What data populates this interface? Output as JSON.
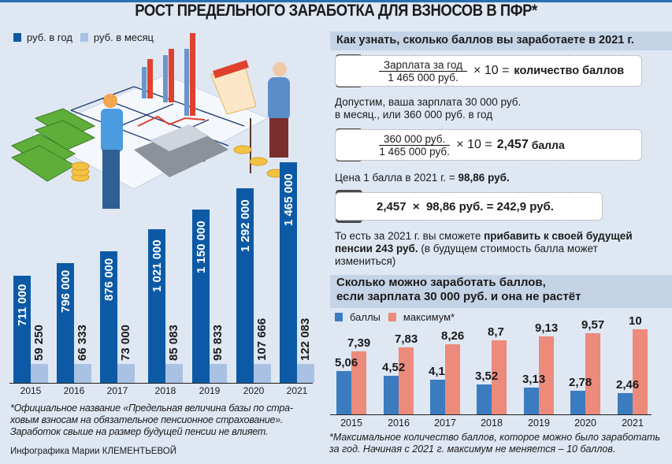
{
  "title": "РОСТ ПРЕДЕЛЬНОГО ЗАРАБОТКА ДЛЯ ВЗНОСОВ В ПФР*",
  "left_chart": {
    "legend": [
      "руб. в год",
      "руб. в месяц"
    ],
    "colors": {
      "year": "#0c5aa6",
      "month": "#a9c1e3"
    },
    "footnote_lines": [
      "*Официальное название «Предельная величина базы по стра-",
      "ховым взносам на обязательное пенсионное страхование».",
      "Заработок свыше на размер будущей пенсии не влияет."
    ],
    "credit": "Инфографика Марии КЛЕМЕНТЬЕВОЙ"
  },
  "right_panel": {
    "header": "Как узнать, сколько баллов вы заработаете в 2021 г.",
    "formula1": {
      "numerator": "Зарплата за год",
      "denominator": "1 465 000 руб.",
      "op": "× 10 =",
      "result": "количество баллов"
    },
    "text1": [
      "Допустим, ваша зарплата 30 000 руб.",
      "в месяц., или 360 000 руб. в год"
    ],
    "formula2": {
      "numerator": "360 000 руб.",
      "denominator": "1 465 000 руб.",
      "op": "× 10 =",
      "result": "2,457",
      "unit": "балла"
    },
    "price_text": "Цена 1 балла в 2021 г. = ",
    "price_value": "98,86 руб.",
    "formula3": "2,457  ×  98,86 руб. = 242,9 руб.",
    "text2_a": "То есть за 2021 г. вы сможете ",
    "text2_b": "прибавить к своей будущей",
    "text2_c": "пенсии 243 руб.",
    "text2_d": " (в будущем стоимость балла может",
    "text2_e": "измениться)",
    "header2": [
      "Сколько можно заработать баллов,",
      "если зарплата 30 000 руб. и она не растёт"
    ],
    "legend": [
      "баллы",
      "максимум*"
    ],
    "colors": {
      "points": "#3b7cc0",
      "max": "#ec8a7b"
    },
    "footnote_lines": [
      "*Максимальное количество баллов, которое можно было заработать",
      "за год. Начиная с 2021 г. максимум не меняется –  10 баллов."
    ]
  },
  "chart_data": [
    {
      "type": "bar",
      "title": "РОСТ ПРЕДЕЛЬНОГО ЗАРАБОТКА ДЛЯ ВЗНОСОВ В ПФР*",
      "categories": [
        "2015",
        "2016",
        "2017",
        "2018",
        "2019",
        "2020",
        "2021"
      ],
      "series": [
        {
          "name": "руб. в год",
          "values": [
            711000,
            796000,
            876000,
            1021000,
            1150000,
            1292000,
            1465000
          ],
          "labels": [
            "711 000",
            "796 000",
            "876 000",
            "1 021 000",
            "1 150 000",
            "1 292 000",
            "1 465 000"
          ]
        },
        {
          "name": "руб. в месяц",
          "values": [
            59250,
            66333,
            73000,
            85083,
            95833,
            107666,
            122083
          ],
          "labels": [
            "59 250",
            "66 333",
            "73 000",
            "85 083",
            "95 833",
            "107 666",
            "122 083"
          ]
        }
      ],
      "xlabel": "",
      "ylabel": "",
      "grid": false,
      "legend_position": "top-left"
    },
    {
      "type": "bar",
      "title": "Сколько можно заработать баллов, если зарплата 30 000 руб. и она не растёт",
      "categories": [
        "2015",
        "2016",
        "2017",
        "2018",
        "2019",
        "2020",
        "2021"
      ],
      "series": [
        {
          "name": "баллы",
          "values": [
            5.06,
            4.52,
            4.1,
            3.52,
            3.13,
            2.78,
            2.46
          ],
          "labels": [
            "5,06",
            "4,52",
            "4,1",
            "3,52",
            "3,13",
            "2,78",
            "2,46"
          ]
        },
        {
          "name": "максимум*",
          "values": [
            7.39,
            7.83,
            8.26,
            8.7,
            9.13,
            9.57,
            10
          ],
          "labels": [
            "7,39",
            "7,83",
            "8,26",
            "8,7",
            "9,13",
            "9,57",
            "10"
          ]
        }
      ],
      "xlabel": "",
      "ylabel": "",
      "grid": false,
      "legend_position": "top-left"
    }
  ]
}
